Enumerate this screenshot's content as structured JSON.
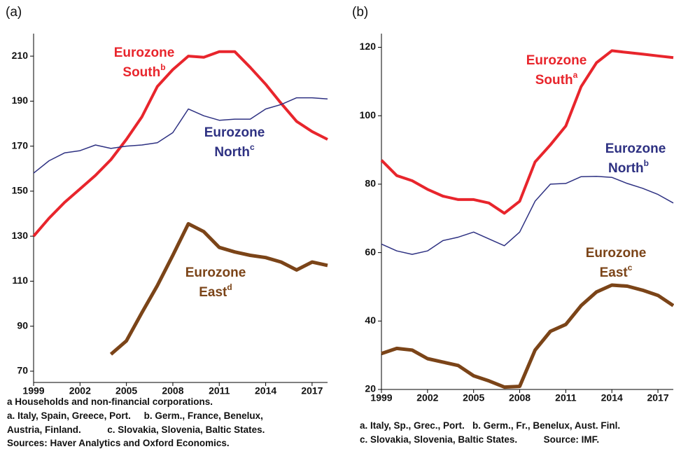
{
  "chart_data": [
    {
      "type": "line",
      "panel_label": "(a)",
      "x": [
        1999,
        2000,
        2001,
        2002,
        2003,
        2004,
        2005,
        2006,
        2007,
        2008,
        2009,
        2010,
        2011,
        2012,
        2013,
        2014,
        2015,
        2016,
        2017,
        2018
      ],
      "xlim": [
        1999,
        2018
      ],
      "xticks": [
        1999,
        2002,
        2005,
        2008,
        2011,
        2014,
        2017
      ],
      "ylim": [
        65,
        220
      ],
      "yticks": [
        70,
        90,
        110,
        130,
        150,
        170,
        190,
        210
      ],
      "series": [
        {
          "name": "Eurozone South",
          "color": "#e8252c",
          "line_width": 4,
          "values": [
            130,
            138,
            145,
            151,
            157,
            164,
            173,
            183,
            196.5,
            204,
            210,
            209.5,
            212,
            212,
            205,
            197.5,
            189,
            181,
            176.5,
            173
          ]
        },
        {
          "name": "Eurozone North",
          "color": "#2e3182",
          "line_width": 1.5,
          "values": [
            158,
            163.5,
            167,
            168,
            170.5,
            169,
            170,
            170.5,
            171.5,
            176,
            186.5,
            183.5,
            181.5,
            182,
            182,
            186.5,
            188.5,
            191.5,
            191.5,
            191
          ]
        },
        {
          "name": "Eurozone East",
          "color": "#7b4418",
          "line_width": 5,
          "values": [
            null,
            null,
            null,
            null,
            null,
            77.5,
            83.5,
            96,
            108,
            121.5,
            135.5,
            132,
            125,
            123,
            121.5,
            120.5,
            118.5,
            115,
            118.5,
            117
          ]
        }
      ],
      "annotations": [
        {
          "line1": "Eurozone",
          "line2": "South",
          "sup": "b"
        },
        {
          "line1": "Eurozone",
          "line2": "North",
          "sup": "c"
        },
        {
          "line1": "Eurozone",
          "line2": "East",
          "sup": "d"
        }
      ],
      "notes": [
        "a Households and non-financial corporations.",
        "a. Italy, Spain, Greece, Port.     b. Germ., France, Benelux,",
        "Austria, Finland.          c. Slovakia, Slovenia, Baltic States.",
        "Sources: Haver Analytics and Oxford Economics."
      ]
    },
    {
      "type": "line",
      "panel_label": "(b)",
      "x": [
        1999,
        2000,
        2001,
        2002,
        2003,
        2004,
        2005,
        2006,
        2007,
        2008,
        2009,
        2010,
        2011,
        2012,
        2013,
        2014,
        2015,
        2016,
        2017,
        2018
      ],
      "xlim": [
        1999,
        2018
      ],
      "xticks": [
        1999,
        2002,
        2005,
        2008,
        2011,
        2014,
        2017
      ],
      "ylim": [
        20,
        124
      ],
      "yticks": [
        20,
        40,
        60,
        80,
        100,
        120
      ],
      "series": [
        {
          "name": "Eurozone South",
          "color": "#e8252c",
          "line_width": 4,
          "values": [
            87,
            82.5,
            81,
            78.5,
            76.5,
            75.5,
            75.5,
            74.5,
            71.5,
            75,
            86.5,
            91.5,
            97,
            108.5,
            115.5,
            119,
            118.5,
            118,
            117.5,
            117
          ]
        },
        {
          "name": "Eurozone North",
          "color": "#2e3182",
          "line_width": 1.5,
          "values": [
            62.5,
            60.5,
            59.5,
            60.5,
            63.5,
            64.5,
            66,
            64,
            62,
            66,
            75,
            80,
            80.2,
            82.2,
            82.3,
            82,
            80.2,
            78.8,
            77,
            74.5
          ]
        },
        {
          "name": "Eurozone East",
          "color": "#7b4418",
          "line_width": 5,
          "values": [
            30.5,
            32,
            31.5,
            29,
            28,
            27,
            24,
            22.5,
            20.7,
            20.9,
            31.5,
            37,
            39,
            44.5,
            48.5,
            50.5,
            50.2,
            49,
            47.5,
            44.5
          ]
        }
      ],
      "annotations": [
        {
          "line1": "Eurozone",
          "line2": "South",
          "sup": "a"
        },
        {
          "line1": "Eurozone",
          "line2": "North",
          "sup": "b"
        },
        {
          "line1": "Eurozone",
          "line2": "East",
          "sup": "c"
        }
      ],
      "notes": [
        "a. Italy, Sp., Grec., Port.   b. Germ., Fr., Benelux, Aust. Finl.",
        "c. Slovakia, Slovenia, Baltic States.          Source: IMF."
      ]
    }
  ]
}
